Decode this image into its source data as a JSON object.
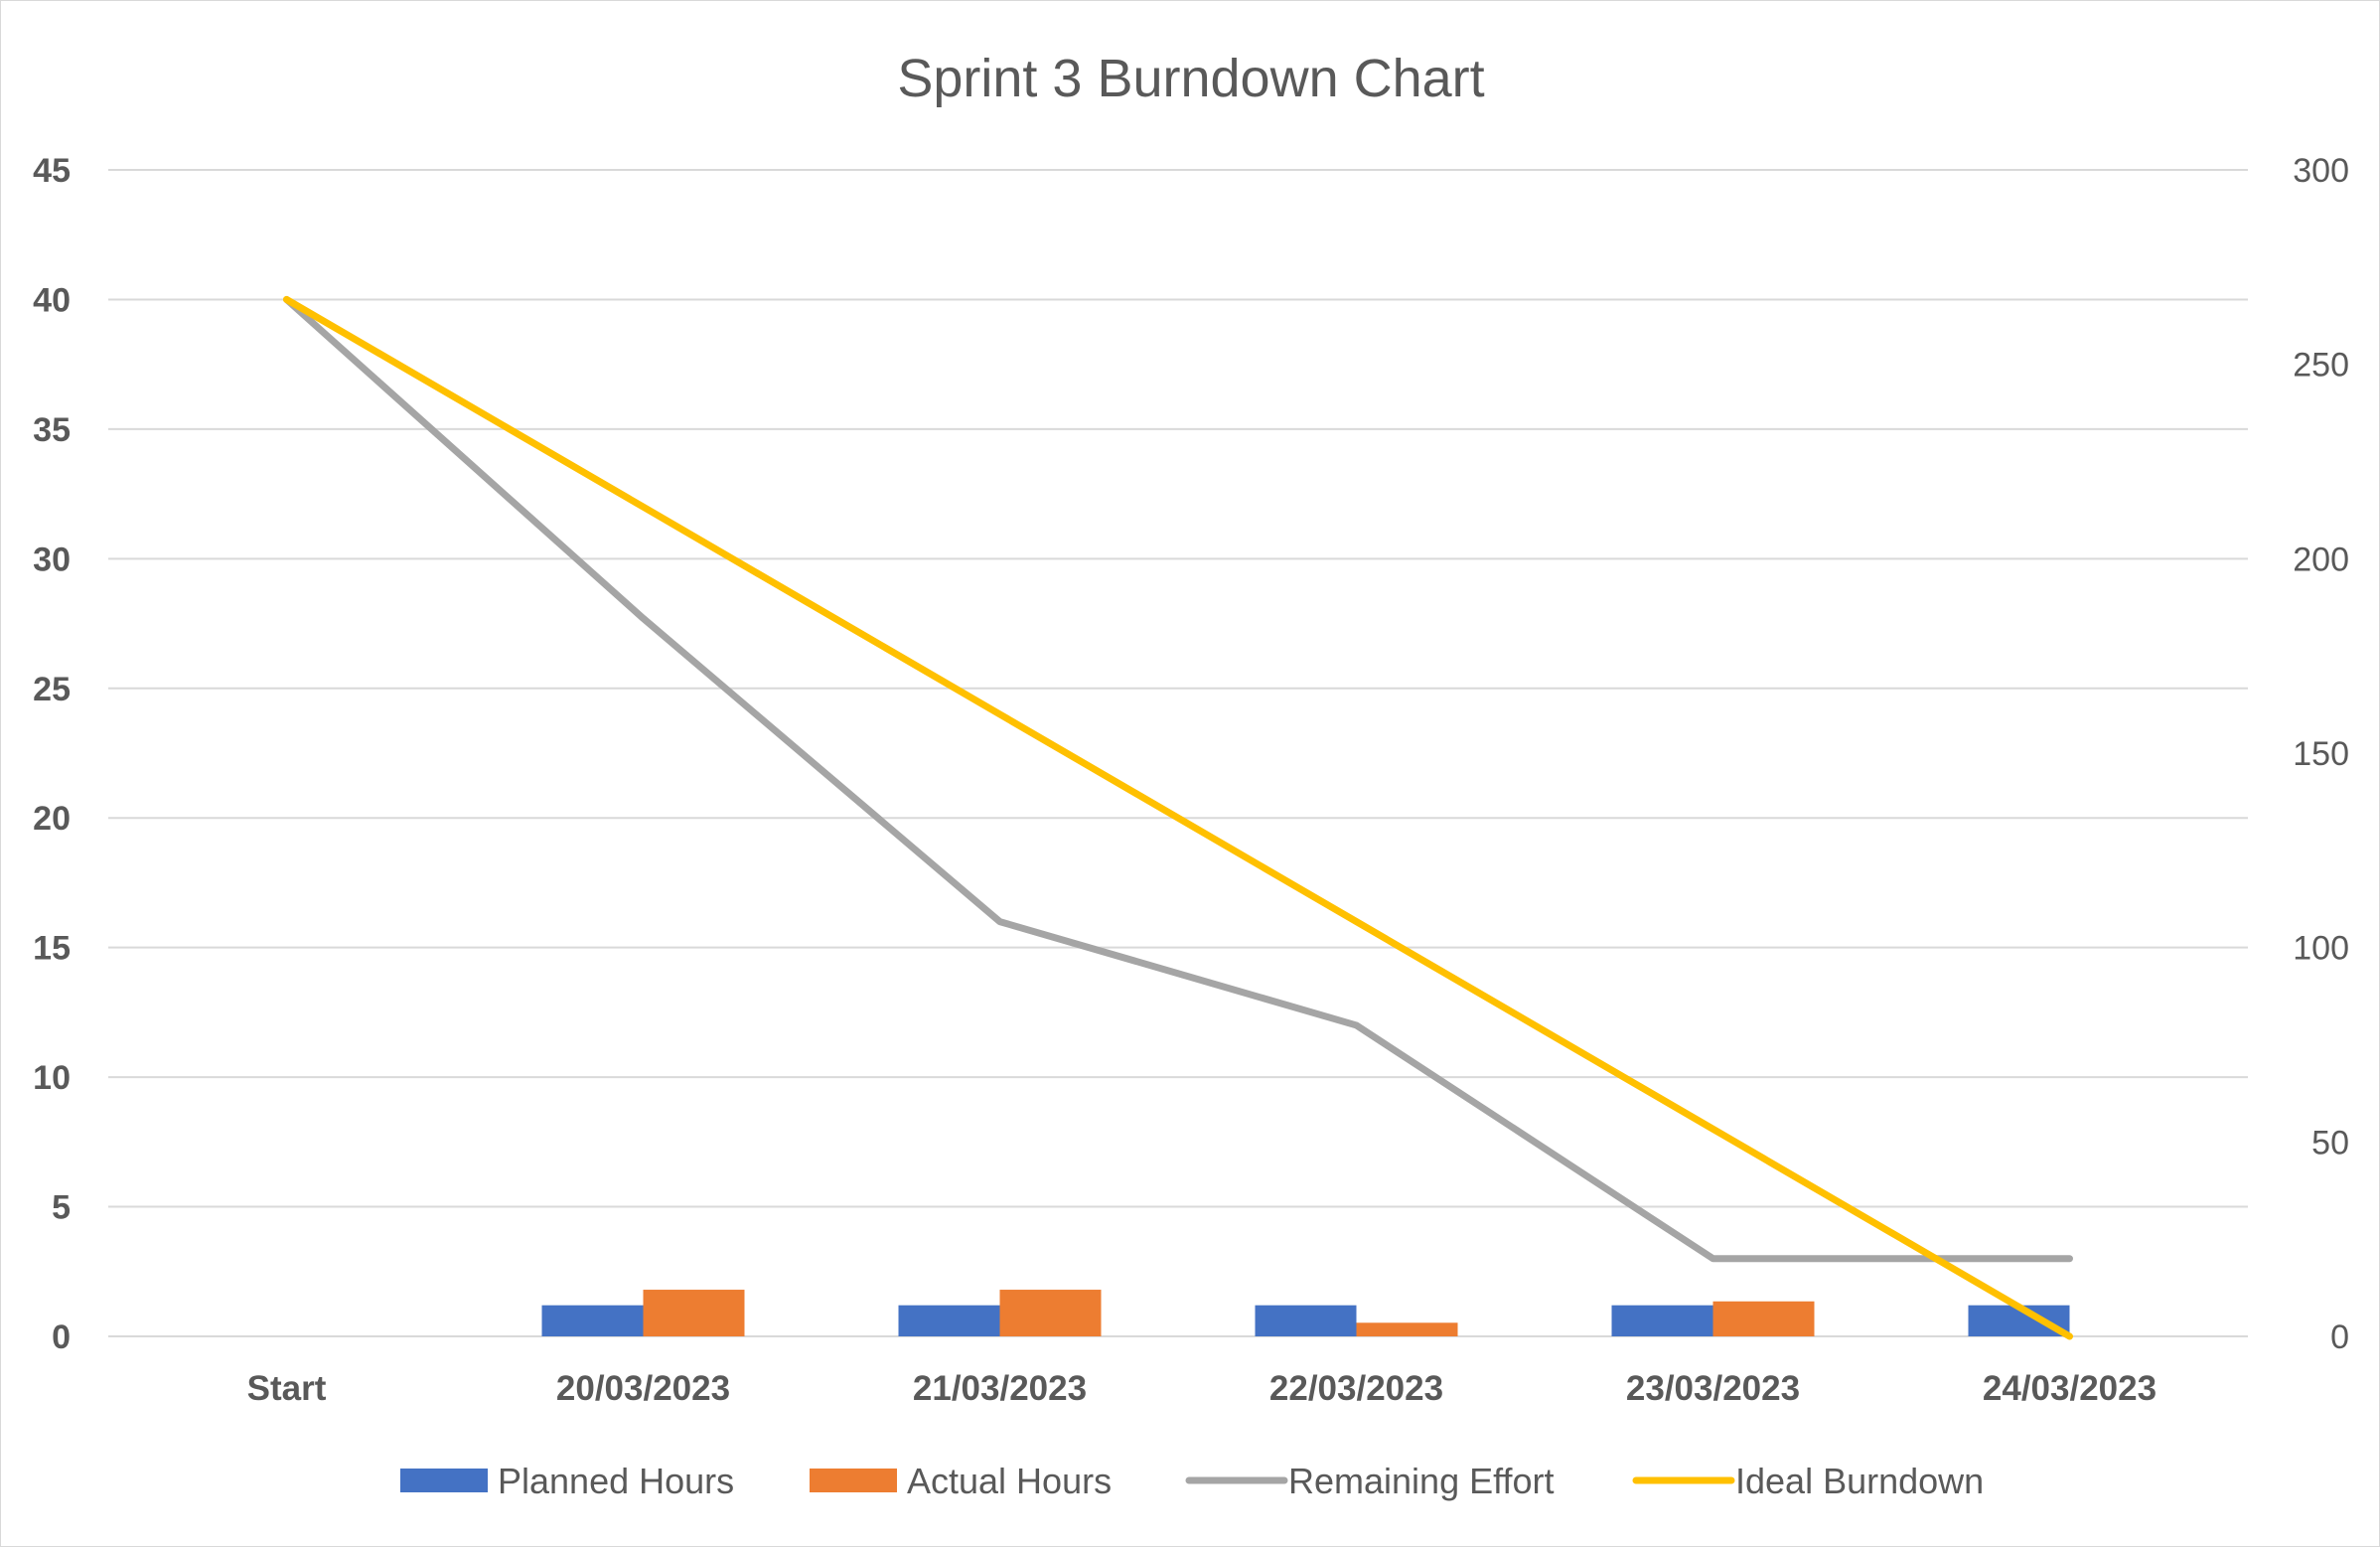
{
  "chart_data": {
    "type": "bar",
    "title": "Sprint 3 Burndown Chart",
    "categories": [
      "Start",
      "20/03/2023",
      "21/03/2023",
      "22/03/2023",
      "23/03/2023",
      "24/03/2023"
    ],
    "y_left": {
      "ylim": [
        0,
        45
      ],
      "ticks": [
        "0",
        "5",
        "10",
        "15",
        "20",
        "25",
        "30",
        "35",
        "40",
        "45"
      ]
    },
    "y_right": {
      "ylim": [
        0,
        300
      ],
      "ticks": [
        "0",
        "50",
        "100",
        "150",
        "200",
        "250",
        "300"
      ]
    },
    "grid": true,
    "legend_position": "bottom",
    "series": [
      {
        "name": "Planned Hours",
        "type": "bar",
        "axis": "right",
        "color": "#4472C4",
        "values": [
          null,
          8,
          8,
          8,
          8,
          8
        ]
      },
      {
        "name": "Actual Hours",
        "type": "bar",
        "axis": "right",
        "color": "#ED7D31",
        "values": [
          null,
          12,
          12,
          3.5,
          9,
          null
        ]
      },
      {
        "name": "Remaining Effort",
        "type": "line",
        "axis": "left",
        "color": "#A5A5A5",
        "values": [
          40,
          27.7,
          16,
          12,
          3,
          3
        ]
      },
      {
        "name": "Ideal Burndown",
        "type": "line",
        "axis": "left",
        "color": "#FFC000",
        "values": [
          40,
          32,
          24,
          16,
          8,
          0
        ]
      }
    ]
  }
}
